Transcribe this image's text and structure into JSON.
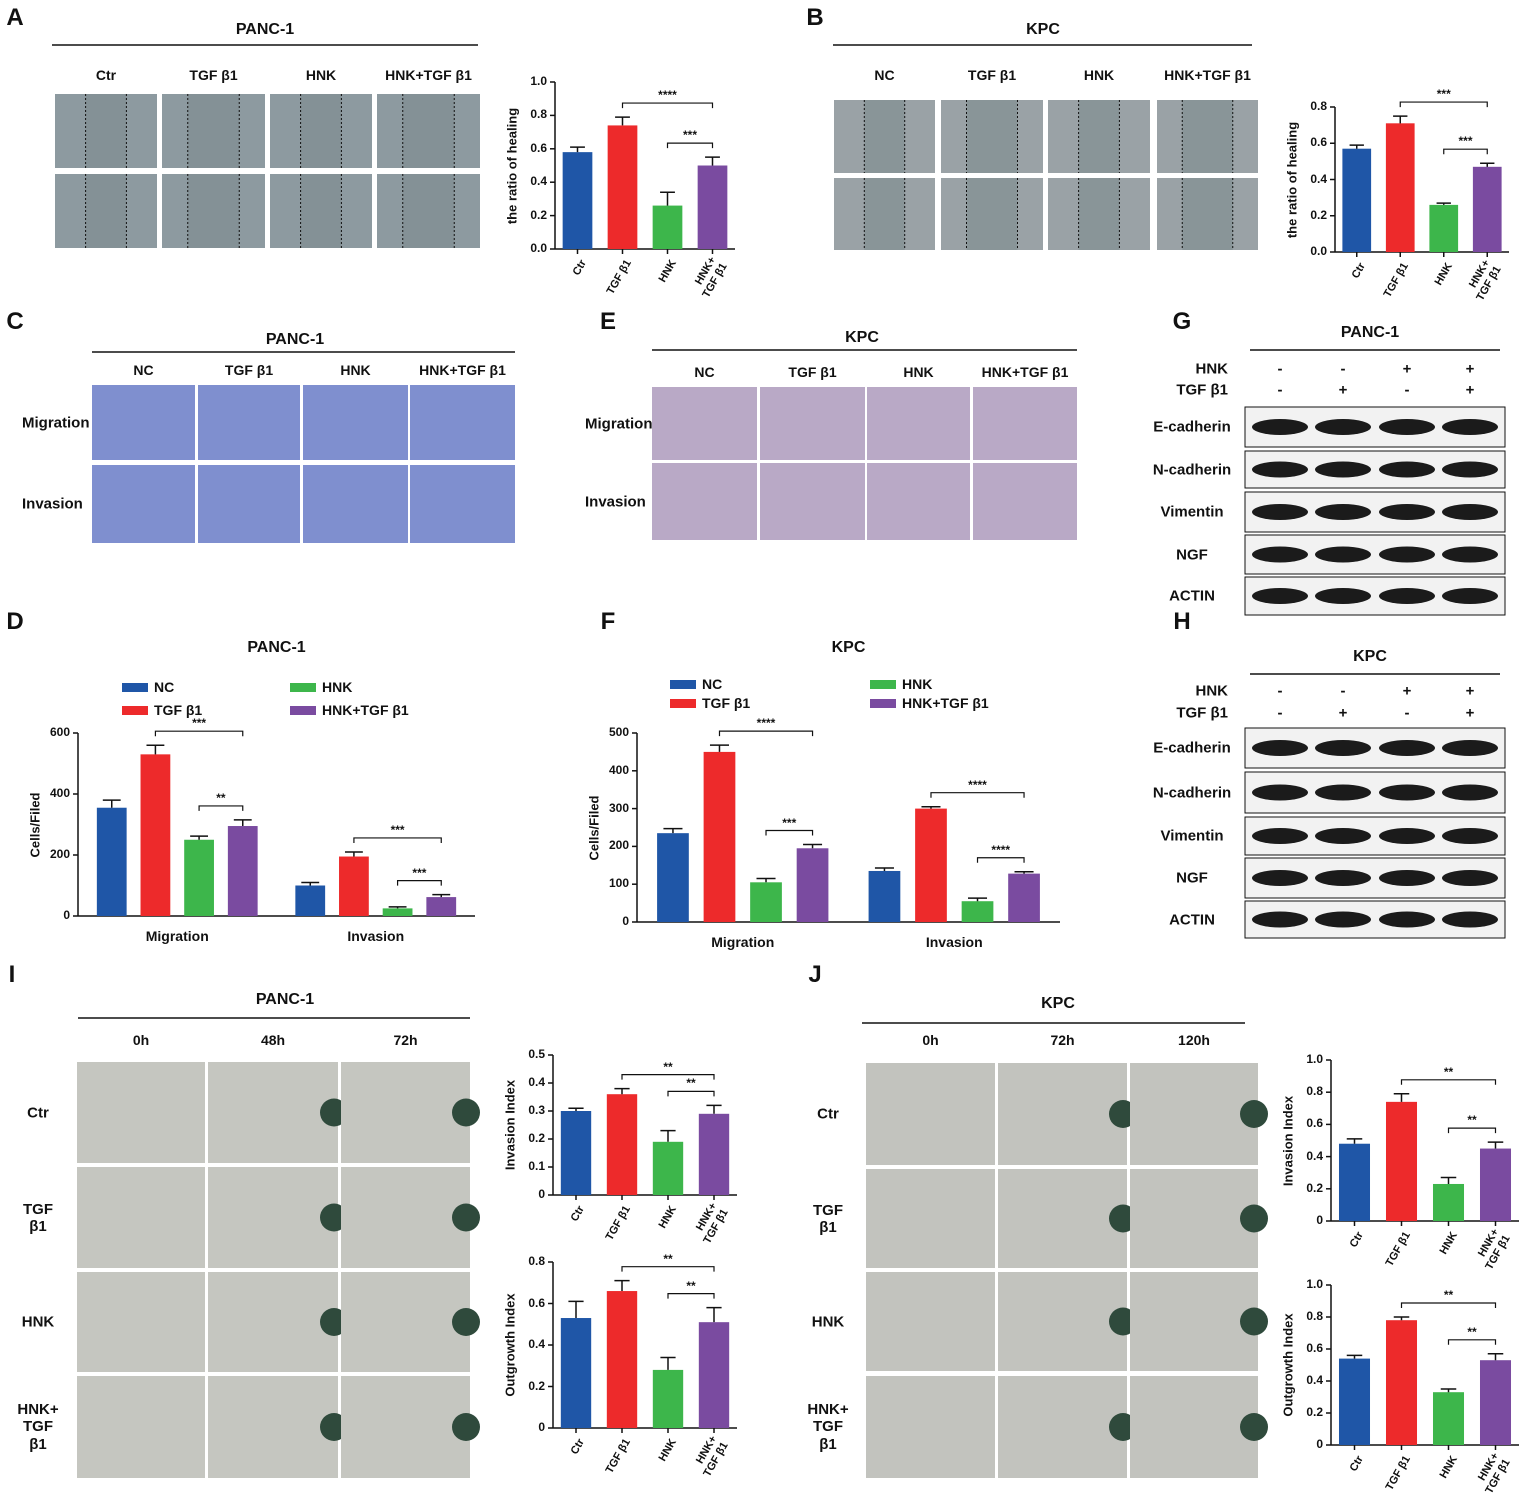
{
  "panel_labels": [
    "A",
    "B",
    "C",
    "D",
    "E",
    "F",
    "G",
    "H",
    "I",
    "J"
  ],
  "image_panels": [
    {
      "title": "PANC-1",
      "columns": [
        "Ctr",
        "TGF β1",
        "HNK",
        "HNK+TGF β1"
      ]
    },
    {
      "title": "KPC",
      "columns": [
        "NC",
        "TGF β1",
        "HNK",
        "HNK+TGF β1"
      ]
    },
    {
      "title": "PANC-1",
      "columns": [
        "NC",
        "TGF β1",
        "HNK",
        "HNK+TGF β1"
      ],
      "rows": [
        "Migration",
        "Invasion"
      ]
    },
    {
      "title": "KPC",
      "columns": [
        "NC",
        "TGF β1",
        "HNK",
        "HNK+TGF β1"
      ],
      "rows": [
        "Migration",
        "Invasion"
      ]
    },
    {
      "title": "PANC-1",
      "columns": [
        "0h",
        "48h",
        "72h"
      ],
      "rows": [
        "Ctr",
        "TGF β1",
        "HNK",
        "HNK+ TGF β1"
      ]
    },
    {
      "title": "KPC",
      "columns": [
        "0h",
        "72h",
        "120h"
      ],
      "rows": [
        "Ctr",
        "TGF β1",
        "HNK",
        "HNK+ TGF β1"
      ]
    }
  ],
  "blots": [
    {
      "title": "PANC-1",
      "treatments": [
        {
          "name": "HNK",
          "signs": [
            "-",
            "-",
            "+",
            "+"
          ]
        },
        {
          "name": "TGF β1",
          "signs": [
            "-",
            "+",
            "-",
            "+"
          ]
        }
      ],
      "proteins": [
        "E-cadherin",
        "N-cadherin",
        "Vimentin",
        "NGF",
        "ACTIN"
      ]
    },
    {
      "title": "KPC",
      "treatments": [
        {
          "name": "HNK",
          "signs": [
            "-",
            "-",
            "+",
            "+"
          ]
        },
        {
          "name": "TGF β1",
          "signs": [
            "-",
            "+",
            "-",
            "+"
          ]
        }
      ],
      "proteins": [
        "E-cadherin",
        "N-cadherin",
        "Vimentin",
        "NGF",
        "ACTIN"
      ]
    }
  ],
  "chart_data": [
    {
      "type": "bar",
      "ylabel": "the ratio of healing",
      "categories": [
        "Ctr",
        "TGF β1",
        "HNK",
        "HNK+ TGF β1"
      ],
      "values": [
        0.58,
        0.74,
        0.26,
        0.5
      ],
      "errors": [
        0.03,
        0.05,
        0.08,
        0.05
      ],
      "colors": [
        "#1f56a7",
        "#ed2a2b",
        "#3db64b",
        "#7a4ba0"
      ],
      "ylim": [
        0,
        1
      ],
      "yticks": [
        {
          "value": 0,
          "label": "0.0"
        },
        0.2,
        0.4,
        0.6,
        0.8,
        {
          "value": 1,
          "label": "1.0"
        }
      ],
      "significance": [
        {
          "bars": [
            1,
            3
          ],
          "label": "****"
        },
        {
          "bars": [
            2,
            3
          ],
          "label": "***"
        }
      ]
    },
    {
      "type": "bar",
      "ylabel": "the ratio of healing",
      "categories": [
        "Ctr",
        "TGF β1",
        "HNK",
        "HNK+ TGF β1"
      ],
      "values": [
        0.57,
        0.71,
        0.26,
        0.47
      ],
      "errors": [
        0.02,
        0.04,
        0.01,
        0.02
      ],
      "colors": [
        "#1f56a7",
        "#ed2a2b",
        "#3db64b",
        "#7a4ba0"
      ],
      "ylim": [
        0,
        0.8
      ],
      "yticks": [
        {
          "value": 0,
          "label": "0.0"
        },
        0.2,
        0.4,
        0.6,
        0.8
      ],
      "significance": [
        {
          "bars": [
            1,
            3
          ],
          "label": "***"
        },
        {
          "bars": [
            2,
            3
          ],
          "label": "***"
        }
      ]
    },
    {
      "type": "grouped_bar",
      "title": "PANC-1",
      "ylabel": "Cells/Filed",
      "categories": [
        "Migration",
        "Invasion"
      ],
      "series": [
        {
          "name": "NC",
          "color": "#1f56a7",
          "values": [
            355,
            100
          ],
          "errors": [
            25,
            10
          ]
        },
        {
          "name": "TGF β1",
          "color": "#ed2a2b",
          "values": [
            530,
            195
          ],
          "errors": [
            30,
            15
          ]
        },
        {
          "name": "HNK",
          "color": "#3db64b",
          "values": [
            250,
            25
          ],
          "errors": [
            12,
            5
          ]
        },
        {
          "name": "HNK+TGF β1",
          "color": "#7a4ba0",
          "values": [
            295,
            62
          ],
          "errors": [
            20,
            8
          ]
        }
      ],
      "ylim": [
        0,
        600
      ],
      "yticks": [
        0,
        200,
        400,
        600
      ],
      "significance": [
        {
          "category": 0,
          "bars": [
            1,
            3
          ],
          "label": "***"
        },
        {
          "category": 0,
          "bars": [
            2,
            3
          ],
          "label": "**"
        },
        {
          "category": 1,
          "bars": [
            1,
            3
          ],
          "label": "***"
        },
        {
          "category": 1,
          "bars": [
            2,
            3
          ],
          "label": "***"
        }
      ]
    },
    {
      "type": "grouped_bar",
      "title": "KPC",
      "ylabel": "Cells/Filed",
      "categories": [
        "Migration",
        "Invasion"
      ],
      "series": [
        {
          "name": "NC",
          "color": "#1f56a7",
          "values": [
            235,
            135
          ],
          "errors": [
            12,
            8
          ]
        },
        {
          "name": "TGF β1",
          "color": "#ed2a2b",
          "values": [
            450,
            300
          ],
          "errors": [
            18,
            5
          ]
        },
        {
          "name": "HNK",
          "color": "#3db64b",
          "values": [
            105,
            55
          ],
          "errors": [
            10,
            8
          ]
        },
        {
          "name": "HNK+TGF β1",
          "color": "#7a4ba0",
          "values": [
            195,
            128
          ],
          "errors": [
            10,
            5
          ]
        }
      ],
      "ylim": [
        0,
        500
      ],
      "yticks": [
        0,
        100,
        200,
        300,
        400,
        500
      ],
      "significance": [
        {
          "category": 0,
          "bars": [
            1,
            3
          ],
          "label": "****"
        },
        {
          "category": 0,
          "bars": [
            2,
            3
          ],
          "label": "***"
        },
        {
          "category": 1,
          "bars": [
            1,
            3
          ],
          "label": "****"
        },
        {
          "category": 1,
          "bars": [
            2,
            3
          ],
          "label": "****"
        }
      ]
    },
    {
      "type": "bar",
      "ylabel": "Invasion Index",
      "categories": [
        "Ctr",
        "TGF β1",
        "HNK",
        "HNK+ TGF β1"
      ],
      "values": [
        0.3,
        0.36,
        0.19,
        0.29
      ],
      "errors": [
        0.01,
        0.02,
        0.04,
        0.03
      ],
      "colors": [
        "#1f56a7",
        "#ed2a2b",
        "#3db64b",
        "#7a4ba0"
      ],
      "ylim": [
        0,
        0.5
      ],
      "yticks": [
        0,
        0.1,
        0.2,
        0.3,
        0.4,
        0.5
      ],
      "significance": [
        {
          "bars": [
            1,
            3
          ],
          "label": "**"
        },
        {
          "bars": [
            2,
            3
          ],
          "label": "**"
        }
      ]
    },
    {
      "type": "bar",
      "ylabel": "Outgrowth Index",
      "categories": [
        "Ctr",
        "TGF β1",
        "HNK",
        "HNK+ TGF β1"
      ],
      "values": [
        0.53,
        0.66,
        0.28,
        0.51
      ],
      "errors": [
        0.08,
        0.05,
        0.06,
        0.07
      ],
      "colors": [
        "#1f56a7",
        "#ed2a2b",
        "#3db64b",
        "#7a4ba0"
      ],
      "ylim": [
        0,
        0.8
      ],
      "yticks": [
        0,
        0.2,
        0.4,
        0.6,
        0.8
      ],
      "significance": [
        {
          "bars": [
            1,
            3
          ],
          "label": "**"
        },
        {
          "bars": [
            2,
            3
          ],
          "label": "**"
        }
      ]
    },
    {
      "type": "bar",
      "ylabel": "Invasion Index",
      "categories": [
        "Ctr",
        "TGF β1",
        "HNK",
        "HNK+ TGF β1"
      ],
      "values": [
        0.48,
        0.74,
        0.23,
        0.45
      ],
      "errors": [
        0.03,
        0.05,
        0.04,
        0.04
      ],
      "colors": [
        "#1f56a7",
        "#ed2a2b",
        "#3db64b",
        "#7a4ba0"
      ],
      "ylim": [
        0,
        1
      ],
      "yticks": [
        0,
        0.2,
        0.4,
        0.6,
        0.8,
        {
          "value": 1,
          "label": "1.0"
        }
      ],
      "significance": [
        {
          "bars": [
            1,
            3
          ],
          "label": "**"
        },
        {
          "bars": [
            2,
            3
          ],
          "label": "**"
        }
      ]
    },
    {
      "type": "bar",
      "ylabel": "Outgrowth Index",
      "categories": [
        "Ctr",
        "TGF β1",
        "HNK",
        "HNK+ TGF β1"
      ],
      "values": [
        0.54,
        0.78,
        0.33,
        0.53
      ],
      "errors": [
        0.02,
        0.02,
        0.02,
        0.04
      ],
      "colors": [
        "#1f56a7",
        "#ed2a2b",
        "#3db64b",
        "#7a4ba0"
      ],
      "ylim": [
        0,
        1
      ],
      "yticks": [
        0,
        0.2,
        0.4,
        0.6,
        0.8,
        {
          "value": 1,
          "label": "1.0"
        }
      ],
      "significance": [
        {
          "bars": [
            1,
            3
          ],
          "label": "**"
        },
        {
          "bars": [
            2,
            3
          ],
          "label": "**"
        }
      ]
    }
  ]
}
